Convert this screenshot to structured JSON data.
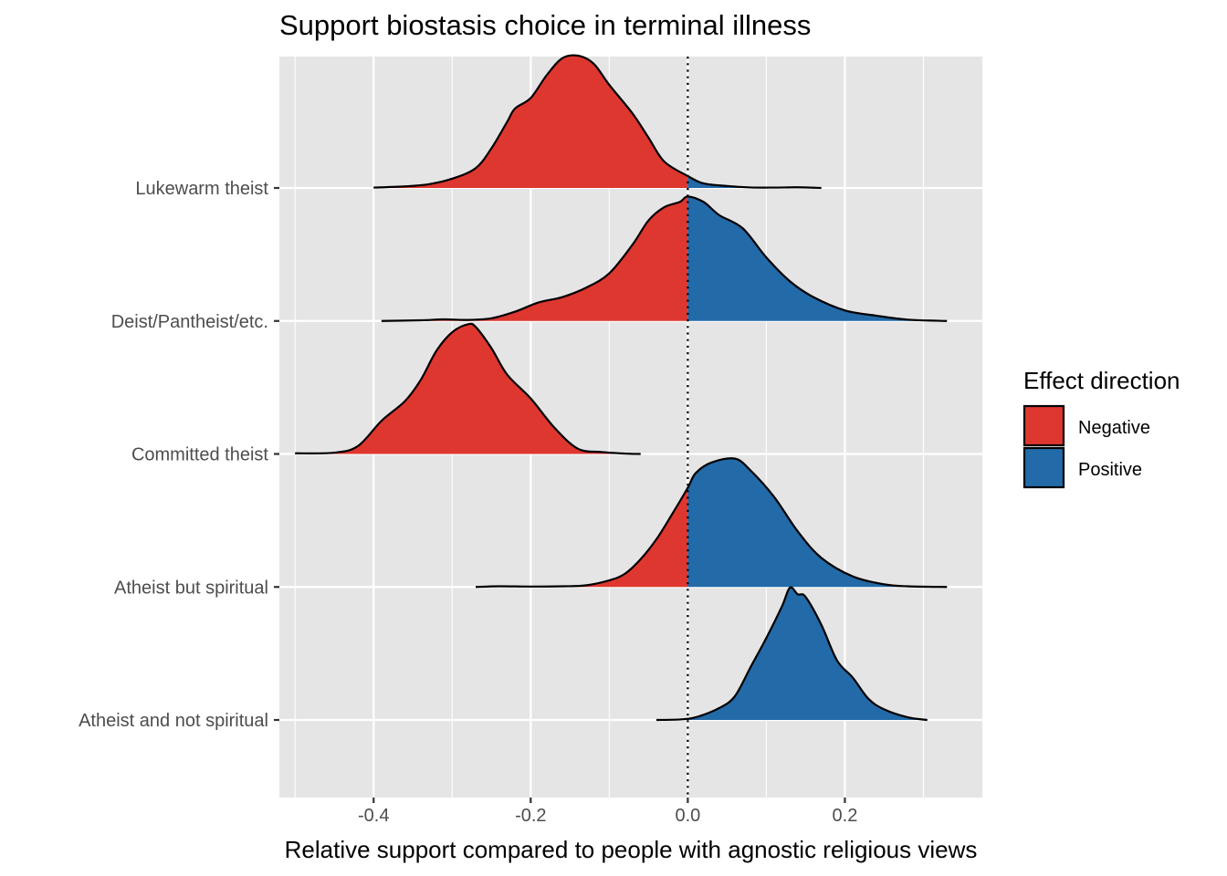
{
  "chart_data": {
    "type": "ridgeline",
    "title": "Support biostasis choice in terminal illness",
    "xlabel": "Relative support compared to people with agnostic religious views",
    "ylabel": "",
    "xlim": [
      -0.52,
      0.375
    ],
    "x_ticks": [
      "-0.4",
      "-0.2",
      "0.0",
      "0.2"
    ],
    "x_tick_values": [
      -0.4,
      -0.2,
      0.0,
      0.2
    ],
    "grid": true,
    "reference_line": 0.0,
    "categories": [
      "Atheist and not spiritual",
      "Atheist but spiritual",
      "Committed theist",
      "Deist/Pantheist/etc.",
      "Lukewarm theist"
    ],
    "legend": {
      "title": "Effect direction",
      "placement": "right",
      "entries": [
        {
          "label": "Negative",
          "color": "#de3730"
        },
        {
          "label": "Positive",
          "color": "#236aa8"
        }
      ]
    },
    "colors": {
      "negative": "#de3730",
      "positive": "#236aa8",
      "panel": "#e5e5e5",
      "grid": "#ffffff"
    },
    "series": [
      {
        "category": "Lukewarm theist",
        "points": [
          [
            -0.4,
            0.003
          ],
          [
            -0.36,
            0.012
          ],
          [
            -0.33,
            0.028
          ],
          [
            -0.3,
            0.07
          ],
          [
            -0.27,
            0.15
          ],
          [
            -0.25,
            0.3
          ],
          [
            -0.23,
            0.5
          ],
          [
            -0.22,
            0.6
          ],
          [
            -0.2,
            0.68
          ],
          [
            -0.18,
            0.85
          ],
          [
            -0.16,
            0.98
          ],
          [
            -0.14,
            1.0
          ],
          [
            -0.12,
            0.94
          ],
          [
            -0.1,
            0.78
          ],
          [
            -0.07,
            0.56
          ],
          [
            -0.05,
            0.38
          ],
          [
            -0.03,
            0.2
          ],
          [
            0.0,
            0.09
          ],
          [
            0.02,
            0.035
          ],
          [
            0.05,
            0.015
          ],
          [
            0.08,
            0.004
          ],
          [
            0.11,
            0.003
          ],
          [
            0.14,
            0.005
          ],
          [
            0.17,
            0.0
          ]
        ]
      },
      {
        "category": "Deist/Pantheist/etc.",
        "points": [
          [
            -0.39,
            0.0
          ],
          [
            -0.34,
            0.005
          ],
          [
            -0.31,
            0.012
          ],
          [
            -0.28,
            0.008
          ],
          [
            -0.25,
            0.02
          ],
          [
            -0.22,
            0.07
          ],
          [
            -0.19,
            0.14
          ],
          [
            -0.16,
            0.18
          ],
          [
            -0.13,
            0.25
          ],
          [
            -0.1,
            0.36
          ],
          [
            -0.07,
            0.58
          ],
          [
            -0.05,
            0.76
          ],
          [
            -0.03,
            0.86
          ],
          [
            -0.01,
            0.9
          ],
          [
            0.0,
            0.94
          ],
          [
            0.02,
            0.9
          ],
          [
            0.04,
            0.8
          ],
          [
            0.07,
            0.7
          ],
          [
            0.1,
            0.48
          ],
          [
            0.13,
            0.3
          ],
          [
            0.16,
            0.18
          ],
          [
            0.2,
            0.08
          ],
          [
            0.24,
            0.04
          ],
          [
            0.28,
            0.01
          ],
          [
            0.33,
            0.0
          ]
        ]
      },
      {
        "category": "Committed theist",
        "points": [
          [
            -0.5,
            0.005
          ],
          [
            -0.45,
            0.01
          ],
          [
            -0.42,
            0.06
          ],
          [
            -0.39,
            0.25
          ],
          [
            -0.36,
            0.4
          ],
          [
            -0.34,
            0.56
          ],
          [
            -0.32,
            0.78
          ],
          [
            -0.3,
            0.92
          ],
          [
            -0.28,
            0.98
          ],
          [
            -0.27,
            0.96
          ],
          [
            -0.25,
            0.8
          ],
          [
            -0.23,
            0.6
          ],
          [
            -0.2,
            0.42
          ],
          [
            -0.17,
            0.2
          ],
          [
            -0.14,
            0.04
          ],
          [
            -0.11,
            0.015
          ],
          [
            -0.08,
            0.003
          ],
          [
            -0.06,
            0.0
          ]
        ]
      },
      {
        "category": "Atheist but spiritual",
        "points": [
          [
            -0.27,
            0.0
          ],
          [
            -0.24,
            0.005
          ],
          [
            -0.2,
            0.003
          ],
          [
            -0.16,
            0.005
          ],
          [
            -0.13,
            0.012
          ],
          [
            -0.1,
            0.05
          ],
          [
            -0.08,
            0.1
          ],
          [
            -0.06,
            0.21
          ],
          [
            -0.04,
            0.36
          ],
          [
            -0.02,
            0.55
          ],
          [
            0.0,
            0.75
          ],
          [
            0.01,
            0.86
          ],
          [
            0.03,
            0.94
          ],
          [
            0.06,
            0.97
          ],
          [
            0.08,
            0.88
          ],
          [
            0.11,
            0.68
          ],
          [
            0.14,
            0.42
          ],
          [
            0.17,
            0.22
          ],
          [
            0.21,
            0.08
          ],
          [
            0.25,
            0.02
          ],
          [
            0.28,
            0.005
          ],
          [
            0.33,
            0.0
          ]
        ]
      },
      {
        "category": "Atheist and not spiritual",
        "points": [
          [
            -0.04,
            0.0
          ],
          [
            -0.01,
            0.004
          ],
          [
            0.01,
            0.02
          ],
          [
            0.04,
            0.09
          ],
          [
            0.06,
            0.18
          ],
          [
            0.08,
            0.4
          ],
          [
            0.1,
            0.62
          ],
          [
            0.12,
            0.86
          ],
          [
            0.13,
            1.0
          ],
          [
            0.14,
            0.95
          ],
          [
            0.15,
            0.93
          ],
          [
            0.17,
            0.72
          ],
          [
            0.19,
            0.45
          ],
          [
            0.21,
            0.32
          ],
          [
            0.23,
            0.16
          ],
          [
            0.25,
            0.08
          ],
          [
            0.28,
            0.02
          ],
          [
            0.305,
            0.0
          ]
        ]
      }
    ]
  }
}
